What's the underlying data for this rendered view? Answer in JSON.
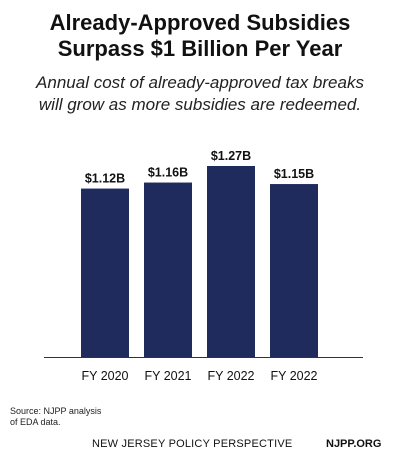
{
  "chart_data": {
    "type": "bar",
    "title": "Already-Approved Subsidies Surpass $1 Billion Per Year",
    "title_lines": [
      "Already-Approved Subsidies",
      "Surpass $1 Billion Per Year"
    ],
    "subtitle": "Annual cost of already-approved tax breaks will grow as more subsidies are redeemed.",
    "subtitle_lines": [
      "Annual cost of already-approved tax breaks",
      "will grow as more subsidies are redeemed."
    ],
    "categories": [
      "FY 2020",
      "FY 2021",
      "FY 2022",
      "FY 2022"
    ],
    "values": [
      1.12,
      1.16,
      1.27,
      1.15
    ],
    "data_labels": [
      "$1.12B",
      "$1.16B",
      "$1.27B",
      "$1.15B"
    ],
    "unit": "billions of dollars",
    "ylim": [
      0,
      1.27
    ],
    "grid": false,
    "bar_color": "#1e2b5c",
    "xlabel": "",
    "ylabel": ""
  },
  "source_lines": [
    "Source: NJPP analysis",
    "of EDA data."
  ],
  "footer": {
    "organization": "NEW JERSEY POLICY PERSPECTIVE",
    "website": "NJPP.ORG"
  }
}
